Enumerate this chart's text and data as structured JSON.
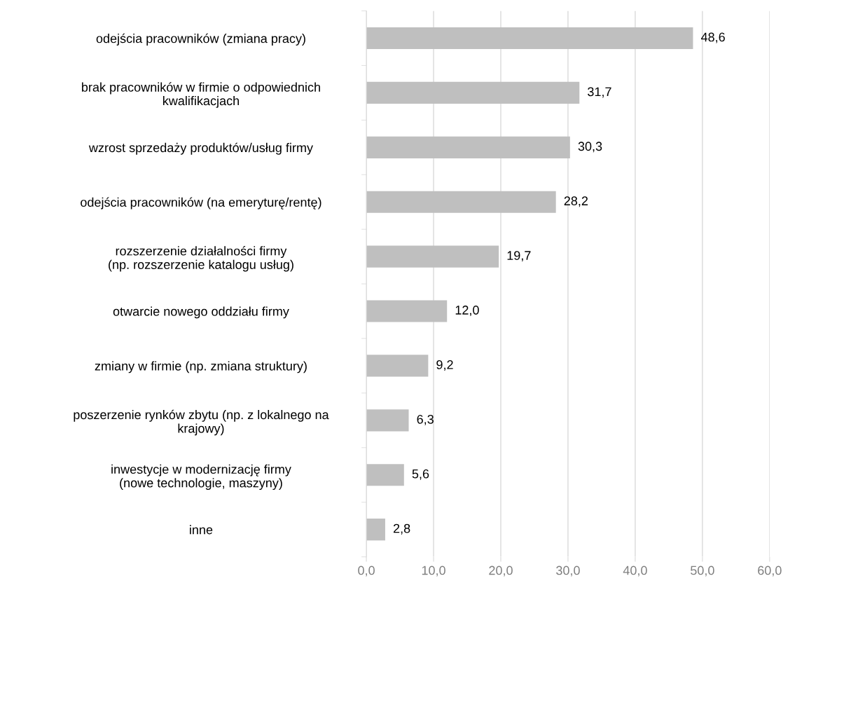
{
  "chart_data": {
    "type": "bar",
    "orientation": "horizontal",
    "categories": [
      "odejścia pracowników (zmiana pracy)",
      "brak pracowników w firmie o odpowiednich\nkwalifikacjach",
      "wzrost sprzedaży produktów/usług firmy",
      "odejścia pracowników (na emeryturę/rentę)",
      "rozszerzenie działalności firmy\n(np. rozszerzenie katalogu usług)",
      "otwarcie nowego oddziału firmy",
      "zmiany w firmie (np. zmiana struktury)",
      "poszerzenie rynków zbytu (np. z lokalnego na\nkrajowy)",
      "inwestycje w modernizację firmy\n(nowe technologie, maszyny)",
      "inne"
    ],
    "values": [
      48.6,
      31.7,
      30.3,
      28.2,
      19.7,
      12.0,
      9.2,
      6.3,
      5.6,
      2.8
    ],
    "value_labels": [
      "48,6",
      "31,7",
      "30,3",
      "28,2",
      "19,7",
      "12,0",
      "9,2",
      "6,3",
      "5,6",
      "2,8"
    ],
    "color": "#bfbfbf",
    "xlim": [
      0,
      60
    ],
    "xticks": [
      {
        "value": 0,
        "label": "0,0"
      },
      {
        "value": 10,
        "label": "10,0"
      },
      {
        "value": 20,
        "label": "20,0"
      },
      {
        "value": 30,
        "label": "30,0"
      },
      {
        "value": 40,
        "label": "40,0"
      },
      {
        "value": 50,
        "label": "50,0"
      },
      {
        "value": 60,
        "label": "60,0"
      }
    ],
    "grid": "x",
    "legend": false
  }
}
